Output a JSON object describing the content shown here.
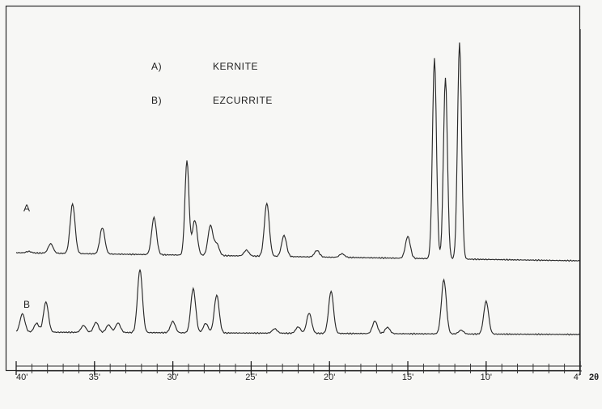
{
  "chart_data": {
    "type": "line",
    "x_axis": {
      "range": [
        40,
        4
      ],
      "reversed": true,
      "ticks": [
        40,
        35,
        30,
        25,
        20,
        15,
        10,
        4
      ],
      "tick_labels": [
        "40'",
        "35'",
        "30'",
        "25'",
        "20'",
        "15'",
        "10'",
        "4'"
      ],
      "unit_label": "2θ"
    },
    "legend": {
      "placement": "top-left",
      "entries": [
        {
          "key": "A)",
          "label": "KERNITE"
        },
        {
          "key": "B)",
          "label": "EZCURRITE"
        }
      ]
    },
    "grid": false,
    "series": [
      {
        "name": "A",
        "baseline": 0.25,
        "peaks": [
          {
            "x": 39.2,
            "y": 0.27
          },
          {
            "x": 37.8,
            "y": 0.38
          },
          {
            "x": 36.4,
            "y": 0.93
          },
          {
            "x": 34.5,
            "y": 0.61
          },
          {
            "x": 31.2,
            "y": 0.76
          },
          {
            "x": 29.1,
            "y": 1.55
          },
          {
            "x": 28.6,
            "y": 0.73
          },
          {
            "x": 27.6,
            "y": 0.66
          },
          {
            "x": 27.2,
            "y": 0.41
          },
          {
            "x": 25.3,
            "y": 0.33
          },
          {
            "x": 24.0,
            "y": 0.98
          },
          {
            "x": 22.9,
            "y": 0.54
          },
          {
            "x": 20.8,
            "y": 0.34
          },
          {
            "x": 19.2,
            "y": 0.3
          },
          {
            "x": 15.0,
            "y": 0.55
          },
          {
            "x": 13.3,
            "y": 3.0
          },
          {
            "x": 12.6,
            "y": 2.73
          },
          {
            "x": 11.7,
            "y": 3.22
          }
        ]
      },
      {
        "name": "B",
        "baseline": 0.0,
        "peaks": [
          {
            "x": 39.6,
            "y": 0.29
          },
          {
            "x": 38.7,
            "y": 0.14
          },
          {
            "x": 38.1,
            "y": 0.48
          },
          {
            "x": 35.7,
            "y": 0.11
          },
          {
            "x": 34.9,
            "y": 0.16
          },
          {
            "x": 34.1,
            "y": 0.12
          },
          {
            "x": 33.5,
            "y": 0.15
          },
          {
            "x": 32.1,
            "y": 1.0
          },
          {
            "x": 30.0,
            "y": 0.18
          },
          {
            "x": 28.7,
            "y": 0.7
          },
          {
            "x": 27.9,
            "y": 0.15
          },
          {
            "x": 27.2,
            "y": 0.6
          },
          {
            "x": 23.5,
            "y": 0.07
          },
          {
            "x": 22.0,
            "y": 0.1
          },
          {
            "x": 21.3,
            "y": 0.32
          },
          {
            "x": 19.9,
            "y": 0.67
          },
          {
            "x": 17.1,
            "y": 0.2
          },
          {
            "x": 16.3,
            "y": 0.1
          },
          {
            "x": 12.7,
            "y": 0.86
          },
          {
            "x": 11.6,
            "y": 0.06
          },
          {
            "x": 10.0,
            "y": 0.52
          }
        ]
      }
    ]
  }
}
